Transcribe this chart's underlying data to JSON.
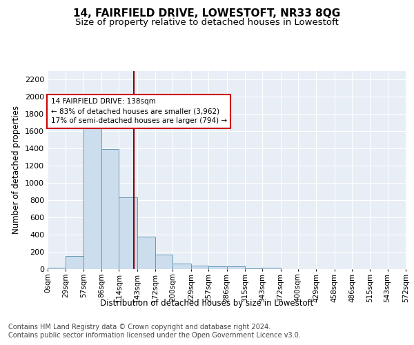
{
  "title": "14, FAIRFIELD DRIVE, LOWESTOFT, NR33 8QG",
  "subtitle": "Size of property relative to detached houses in Lowestoft",
  "xlabel": "Distribution of detached houses by size in Lowestoft",
  "ylabel": "Number of detached properties",
  "bar_color": "#ccdded",
  "bar_edge_color": "#6699bb",
  "background_color": "#e8eef5",
  "grid_color": "#ffffff",
  "vline_x": 138,
  "vline_color": "#8b0000",
  "annotation_line1": "14 FAIRFIELD DRIVE: 138sqm",
  "annotation_line2": "← 83% of detached houses are smaller (3,962)",
  "annotation_line3": "17% of semi-detached houses are larger (794) →",
  "annotation_box_color": "#cc0000",
  "bin_edges": [
    0,
    29,
    57,
    86,
    114,
    143,
    172,
    200,
    229,
    257,
    286,
    315,
    343,
    372,
    400,
    429,
    458,
    486,
    515,
    543,
    572
  ],
  "bin_labels": [
    "0sqm",
    "29sqm",
    "57sqm",
    "86sqm",
    "114sqm",
    "143sqm",
    "172sqm",
    "200sqm",
    "229sqm",
    "257sqm",
    "286sqm",
    "315sqm",
    "343sqm",
    "372sqm",
    "400sqm",
    "429sqm",
    "458sqm",
    "486sqm",
    "515sqm",
    "543sqm",
    "572sqm"
  ],
  "bar_heights": [
    20,
    155,
    1700,
    1390,
    830,
    380,
    165,
    65,
    40,
    30,
    30,
    5,
    15,
    0,
    0,
    0,
    0,
    0,
    0,
    0
  ],
  "ylim": [
    0,
    2300
  ],
  "yticks": [
    0,
    200,
    400,
    600,
    800,
    1000,
    1200,
    1400,
    1600,
    1800,
    2000,
    2200
  ],
  "footer_text": "Contains HM Land Registry data © Crown copyright and database right 2024.\nContains public sector information licensed under the Open Government Licence v3.0.",
  "footer_fontsize": 7.0,
  "title_fontsize": 11,
  "subtitle_fontsize": 9.5,
  "xlabel_fontsize": 8.5,
  "ylabel_fontsize": 8.5,
  "tick_fontsize": 8.0,
  "xtick_fontsize": 7.5
}
